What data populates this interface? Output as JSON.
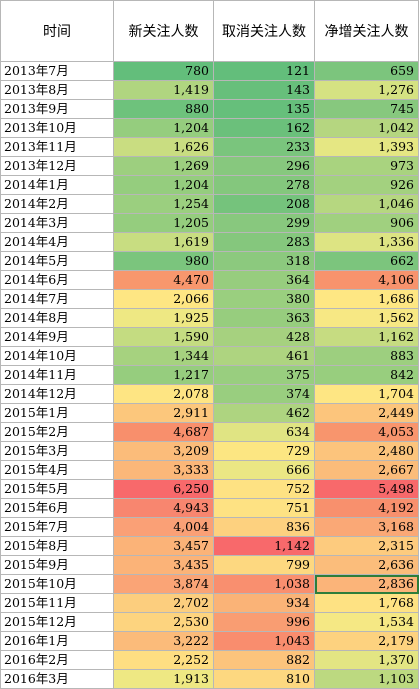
{
  "headers": [
    "时间",
    "新关注人数",
    "取消关注人数",
    "净增关注人数"
  ],
  "selected_cell": {
    "row": 27,
    "col": 3
  },
  "rows": [
    {
      "month": "2013年7月",
      "new": "780",
      "unf": "121",
      "net": "659",
      "c": [
        "#63be7b",
        "#63be7b",
        "#7cc57d"
      ]
    },
    {
      "month": "2013年8月",
      "new": "1,419",
      "unf": "143",
      "net": "1,276",
      "c": [
        "#b0d580",
        "#67bf7b",
        "#d5e282"
      ]
    },
    {
      "month": "2013年9月",
      "new": "880",
      "unf": "135",
      "net": "745",
      "c": [
        "#6ec27c",
        "#66bf7b",
        "#87c87e"
      ]
    },
    {
      "month": "2013年10月",
      "new": "1,204",
      "unf": "162",
      "net": "1,042",
      "c": [
        "#95cd7e",
        "#6bc07b",
        "#b5d680"
      ]
    },
    {
      "month": "2013年11月",
      "new": "1,626",
      "unf": "233",
      "net": "1,393",
      "c": [
        "#c9dd81",
        "#7ac57d",
        "#e5e783"
      ]
    },
    {
      "month": "2013年12月",
      "new": "1,269",
      "unf": "296",
      "net": "973",
      "c": [
        "#9dcf7f",
        "#87c87e",
        "#a9d37f"
      ]
    },
    {
      "month": "2014年1月",
      "new": "1,204",
      "unf": "278",
      "net": "926",
      "c": [
        "#95cd7e",
        "#84c77d",
        "#a3d17f"
      ]
    },
    {
      "month": "2014年2月",
      "new": "1,254",
      "unf": "208",
      "net": "1,046",
      "c": [
        "#9bcf7f",
        "#75c37c",
        "#b6d780"
      ]
    },
    {
      "month": "2014年3月",
      "new": "1,205",
      "unf": "299",
      "net": "906",
      "c": [
        "#95cd7e",
        "#88c87e",
        "#a0d07f"
      ]
    },
    {
      "month": "2014年4月",
      "new": "1,619",
      "unf": "283",
      "net": "1,336",
      "c": [
        "#c8dd81",
        "#85c77d",
        "#dde483"
      ]
    },
    {
      "month": "2014年5月",
      "new": "980",
      "unf": "318",
      "net": "662",
      "c": [
        "#7bc57d",
        "#8cc97e",
        "#7cc57d"
      ]
    },
    {
      "month": "2014年6月",
      "new": "4,470",
      "unf": "364",
      "net": "4,106",
      "c": [
        "#f8976d",
        "#97cd7e",
        "#f8936d"
      ]
    },
    {
      "month": "2014年7月",
      "new": "2,066",
      "unf": "380",
      "net": "1,686",
      "c": [
        "#fee683",
        "#9acf7f",
        "#fee783"
      ]
    },
    {
      "month": "2014年8月",
      "new": "1,925",
      "unf": "363",
      "net": "1,562",
      "c": [
        "#eee883",
        "#97cd7e",
        "#f7e884"
      ]
    },
    {
      "month": "2014年9月",
      "new": "1,590",
      "unf": "428",
      "net": "1,162",
      "c": [
        "#c4dc81",
        "#a6d17f",
        "#c6dc81"
      ]
    },
    {
      "month": "2014年10月",
      "new": "1,344",
      "unf": "461",
      "net": "883",
      "c": [
        "#a6d27f",
        "#aed480",
        "#9dcf7f"
      ]
    },
    {
      "month": "2014年11月",
      "new": "1,217",
      "unf": "375",
      "net": "842",
      "c": [
        "#96cd7e",
        "#99ce7f",
        "#98ce7e"
      ]
    },
    {
      "month": "2014年12月",
      "new": "2,078",
      "unf": "374",
      "net": "1,704",
      "c": [
        "#fee583",
        "#99ce7f",
        "#fee683"
      ]
    },
    {
      "month": "2015年1月",
      "new": "2,911",
      "unf": "462",
      "net": "2,449",
      "c": [
        "#fcc77c",
        "#aed480",
        "#fcc57c"
      ]
    },
    {
      "month": "2015年2月",
      "new": "4,687",
      "unf": "634",
      "net": "4,053",
      "c": [
        "#f88f6c",
        "#e0e483",
        "#f8956d"
      ]
    },
    {
      "month": "2015年3月",
      "new": "3,209",
      "unf": "729",
      "net": "2,480",
      "c": [
        "#fbbc7a",
        "#fce682",
        "#fcc47c"
      ]
    },
    {
      "month": "2015年4月",
      "new": "3,333",
      "unf": "666",
      "net": "2,667",
      "c": [
        "#fbb779",
        "#ebe784",
        "#fbbc7a"
      ]
    },
    {
      "month": "2015年5月",
      "new": "6,250",
      "unf": "752",
      "net": "5,498",
      "c": [
        "#f8696b",
        "#fee283",
        "#f8696b"
      ]
    },
    {
      "month": "2015年6月",
      "new": "4,943",
      "unf": "751",
      "net": "4,192",
      "c": [
        "#f8866f",
        "#fee283",
        "#f8906d"
      ]
    },
    {
      "month": "2015年7月",
      "new": "4,004",
      "unf": "836",
      "net": "3,168",
      "c": [
        "#faa076",
        "#fdd17f",
        "#faa876"
      ]
    },
    {
      "month": "2015年8月",
      "new": "3,457",
      "unf": "1,142",
      "net": "2,315",
      "c": [
        "#fbb378",
        "#f8696b",
        "#fdcb7e"
      ]
    },
    {
      "month": "2015年9月",
      "new": "3,435",
      "unf": "799",
      "net": "2,636",
      "c": [
        "#fbb378",
        "#fdd880",
        "#fbbd7b"
      ]
    },
    {
      "month": "2015年10月",
      "new": "3,874",
      "unf": "1,038",
      "net": "2,836",
      "c": [
        "#faa476",
        "#f98f6f",
        "#fbb479"
      ]
    },
    {
      "month": "2015年11月",
      "new": "2,702",
      "unf": "934",
      "net": "1,768",
      "c": [
        "#fcce7e",
        "#fab377",
        "#fee283"
      ]
    },
    {
      "month": "2015年12月",
      "new": "2,530",
      "unf": "996",
      "net": "1,534",
      "c": [
        "#fdd47f",
        "#f99d72",
        "#f5e884"
      ]
    },
    {
      "month": "2016年1月",
      "new": "3,222",
      "unf": "1,043",
      "net": "2,179",
      "c": [
        "#fbbb7a",
        "#f98d6e",
        "#fdd27f"
      ]
    },
    {
      "month": "2016年2月",
      "new": "2,252",
      "unf": "882",
      "net": "1,370",
      "c": [
        "#fede82",
        "#fcc47c",
        "#e3e583"
      ]
    },
    {
      "month": "2016年3月",
      "new": "1,913",
      "unf": "810",
      "net": "1,103",
      "c": [
        "#eee883",
        "#fdd880",
        "#bcd980"
      ]
    }
  ]
}
